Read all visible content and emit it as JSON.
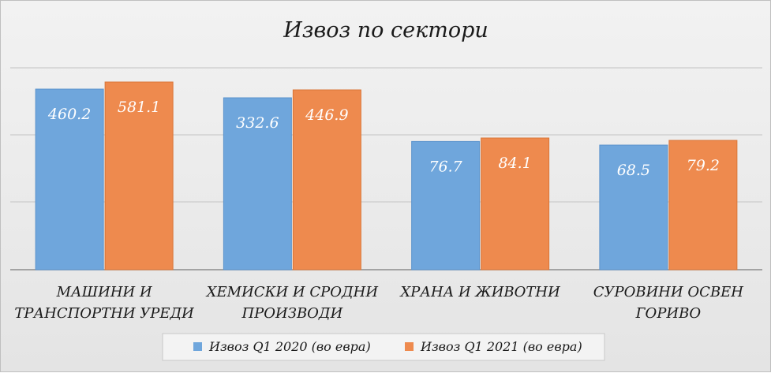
{
  "chart_data": {
    "type": "bar",
    "title": "Извоз по сектори",
    "categories": [
      [
        "МАШИНИ И",
        "ТРАНСПОРТНИ УРЕДИ"
      ],
      [
        "ХЕМИСКИ И СРОДНИ",
        "ПРОИЗВОДИ"
      ],
      [
        "ХРАНА И ЖИВОТНИ"
      ],
      [
        "СУРОВИНИ ОСВЕН",
        "ГОРИВО"
      ]
    ],
    "series": [
      {
        "name": "Извоз Q1 2020 (во евра)",
        "color": "#6fa6dc",
        "values": [
          460.2,
          332.6,
          76.7,
          68.5
        ],
        "labels": [
          "460.2",
          "332.6",
          "76.7",
          "68.5"
        ]
      },
      {
        "name": "Извоз Q1 2021 (во евра)",
        "color": "#ee8a4e",
        "values": [
          581.1,
          446.9,
          84.1,
          79.2
        ],
        "labels": [
          "581.1",
          "446.9",
          "84.1",
          "79.2"
        ]
      }
    ],
    "axis_scale": "nonlinear (gridlines without tick labels)",
    "grid": true,
    "legend_position": "bottom",
    "data_labels": "inside bar top, white"
  }
}
